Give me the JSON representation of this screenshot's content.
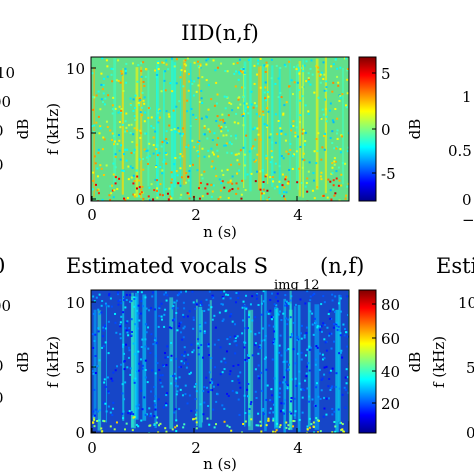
{
  "chart_data": [
    {
      "type": "heatmap",
      "title": "IID(n,f)",
      "xlabel": "n (s)",
      "ylabel": "f (kHz)",
      "colorbar_label": "dB",
      "xlim": [
        0,
        5
      ],
      "ylim": [
        0,
        11
      ],
      "x_ticks": [
        "0",
        "2",
        "4"
      ],
      "y_ticks": [
        "0",
        "5",
        "10"
      ],
      "colorbar_range": [
        -7,
        7
      ],
      "colorbar_ticks": [
        "-5",
        "0",
        "5"
      ],
      "colormap": "jet",
      "description_values": {
        "dominant_level_db": 0,
        "low_frequency_band_khz": [
          0,
          1
        ],
        "low_frequency_level_db": 3
      }
    },
    {
      "type": "heatmap",
      "title": "Estimated vocals S",
      "title_subscript": "img 12",
      "title_suffix": "(n,f)",
      "xlabel": "n (s)",
      "ylabel": "f (kHz)",
      "colorbar_label": "dB",
      "xlim": [
        0,
        5
      ],
      "ylim": [
        0,
        11
      ],
      "x_ticks": [
        "0",
        "2",
        "4"
      ],
      "y_ticks": [
        "0",
        "5",
        "10"
      ],
      "colorbar_range": [
        0,
        90
      ],
      "colorbar_ticks": [
        "20",
        "40",
        "60",
        "80"
      ],
      "colormap": "jet",
      "description_values": {
        "dominant_level_db": 10,
        "vertical_band_level_db": 40,
        "bottom_band_level_db": 50
      }
    }
  ],
  "left_partial_ticks_top": [
    "10",
    "00",
    "0",
    "0"
  ],
  "left_partial_label_top": "dB",
  "left_partial_ticks_bottom": [
    "0",
    "00",
    "0",
    "0"
  ],
  "left_partial_label_bottom": "dB",
  "right_partial_ticks_top": [
    "1",
    "0.5",
    "0",
    "−"
  ],
  "right_partial_title_top": "",
  "right_partial_title_bottom": "Esti",
  "right_partial_ticks_bottom": [
    "10",
    "5",
    "0"
  ],
  "right_partial_ylabel_bottom": "f (kHz)",
  "colors": {
    "jet_low": "#00008f",
    "jet_mid": "#7fff7f",
    "jet_high": "#7f0000"
  }
}
